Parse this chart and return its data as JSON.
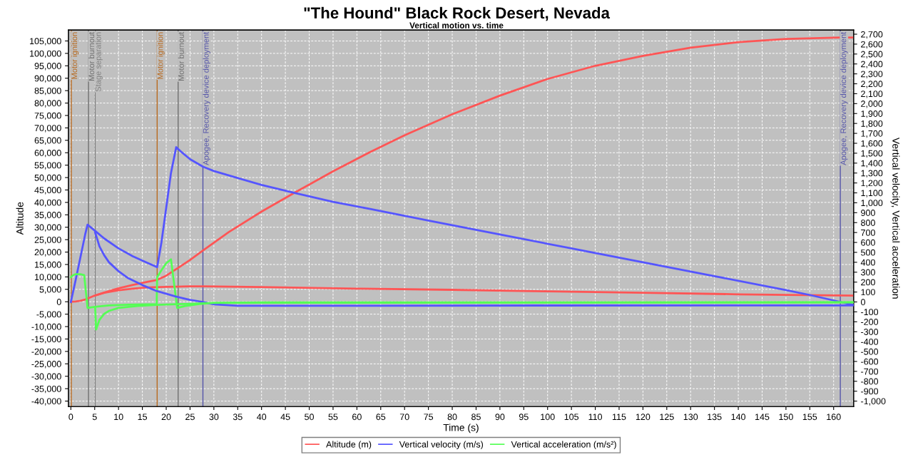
{
  "chart_data": {
    "type": "line",
    "title": "\"The Hound\" Black Rock Desert, Nevada",
    "subtitle": "Vertical motion vs. time",
    "xlabel": "Time (s)",
    "ylabel": "Altitude",
    "y2label": "Vertical velocity, Vertical acceleration",
    "series": [
      {
        "name": "Altitude (m)",
        "color": "#ff5555",
        "axis": "y",
        "x": [
          0,
          1,
          2,
          3,
          3.5,
          5,
          7,
          10,
          13,
          16,
          18.1,
          20,
          22,
          25,
          27.7,
          33.1,
          40,
          47,
          55,
          63,
          70,
          80,
          90,
          100,
          110,
          120,
          130,
          140,
          150,
          161.4,
          164
        ],
        "values": [
          0,
          100,
          400,
          900,
          1300,
          2500,
          3700,
          5400,
          6800,
          8000,
          8800,
          10500,
          13000,
          16800,
          20600,
          28000,
          36300,
          44000,
          52500,
          60500,
          67000,
          75500,
          83000,
          89700,
          95000,
          99000,
          102300,
          104500,
          105800,
          106400,
          106400
        ]
      },
      {
        "name": "Vertical velocity (m/s)",
        "color": "#5555ff",
        "axis": "y2",
        "x": [
          0,
          1,
          2,
          3,
          3.5,
          5,
          7,
          10,
          13,
          16,
          18.1,
          19,
          20,
          21,
          22.1,
          23,
          25,
          27.7,
          30,
          35.1,
          40,
          47.1,
          55,
          63,
          75,
          90,
          105,
          120,
          135,
          150,
          155,
          161.4,
          164
        ],
        "values": [
          0,
          220,
          450,
          680,
          779,
          720,
          640,
          540,
          460,
          395,
          350,
          600,
          950,
          1300,
          1561,
          1520,
          1440,
          1364,
          1320,
          1248,
          1180,
          1097,
          1010,
          935,
          820,
          680,
          540,
          400,
          260,
          120,
          70,
          0,
          -28
        ]
      },
      {
        "name": "Vertical acceleration (m/s²)",
        "color": "#55ff55",
        "axis": "y2",
        "x": [
          0,
          0.5,
          1,
          2,
          2.8,
          3.5,
          5,
          8,
          12,
          18,
          18.1,
          19,
          20,
          21,
          22.3,
          24,
          27,
          30,
          40,
          164
        ],
        "values": [
          250,
          270,
          280,
          280,
          270,
          -60,
          -50,
          -35,
          -28,
          -22,
          250,
          320,
          390,
          430,
          -60,
          -40,
          -20,
          -10,
          -8,
          -5
        ]
      },
      {
        "color": "#ff5555",
        "axis": "y",
        "x": [
          5.1,
          7,
          10,
          13,
          16,
          20,
          25,
          28,
          40,
          60,
          80,
          100,
          120,
          140,
          164
        ],
        "values": [
          2500,
          3600,
          4600,
          5300,
          5800,
          6000,
          6200,
          6200,
          5900,
          5300,
          4800,
          4200,
          3600,
          3000,
          2500
        ]
      },
      {
        "color": "#5555ff",
        "axis": "y2",
        "x": [
          5.1,
          6,
          7,
          8,
          10,
          12,
          15,
          18,
          22,
          25,
          27.7,
          30,
          35,
          60,
          100,
          164
        ],
        "values": [
          700,
          560,
          470,
          400,
          310,
          240,
          170,
          110,
          55,
          20,
          0,
          -25,
          -38,
          -38,
          -36,
          -35
        ]
      },
      {
        "color": "#55ff55",
        "axis": "y2",
        "x": [
          5.1,
          5.3,
          6,
          7,
          8,
          10,
          14,
          18,
          24,
          30,
          40,
          164
        ],
        "values": [
          -60,
          -278,
          -180,
          -120,
          -90,
          -60,
          -40,
          -30,
          -20,
          -10,
          -5,
          -3
        ]
      }
    ],
    "xlim": [
      -0.5,
      164.2
    ],
    "xticks": [
      0,
      5,
      10,
      15,
      20,
      25,
      30,
      35,
      40,
      45,
      50,
      55,
      60,
      65,
      70,
      75,
      80,
      85,
      90,
      95,
      100,
      105,
      110,
      115,
      120,
      125,
      130,
      135,
      140,
      145,
      150,
      155,
      160
    ],
    "ylim": [
      -42200,
      109400
    ],
    "yticks": [
      {
        "value": -40000,
        "label": "-40,000"
      },
      {
        "value": -35000,
        "label": "-35,000"
      },
      {
        "value": -30000,
        "label": "-30,000"
      },
      {
        "value": -25000,
        "label": "-25,000"
      },
      {
        "value": -20000,
        "label": "-20,000"
      },
      {
        "value": -15000,
        "label": "-15,000"
      },
      {
        "value": -10000,
        "label": "-10,000"
      },
      {
        "value": -5000,
        "label": "-5,000"
      },
      0,
      {
        "value": 5000,
        "label": "5,000"
      },
      {
        "value": 10000,
        "label": "10,000"
      },
      {
        "value": 15000,
        "label": "15,000"
      },
      {
        "value": 20000,
        "label": "20,000"
      },
      {
        "value": 25000,
        "label": "25,000"
      },
      {
        "value": 30000,
        "label": "30,000"
      },
      {
        "value": 35000,
        "label": "35,000"
      },
      {
        "value": 40000,
        "label": "40,000"
      },
      {
        "value": 45000,
        "label": "45,000"
      },
      {
        "value": 50000,
        "label": "50,000"
      },
      {
        "value": 55000,
        "label": "55,000"
      },
      {
        "value": 60000,
        "label": "60,000"
      },
      {
        "value": 65000,
        "label": "65,000"
      },
      {
        "value": 70000,
        "label": "70,000"
      },
      {
        "value": 75000,
        "label": "75,000"
      },
      {
        "value": 80000,
        "label": "80,000"
      },
      {
        "value": 85000,
        "label": "85,000"
      },
      {
        "value": 90000,
        "label": "90,000"
      },
      {
        "value": 95000,
        "label": "95,000"
      },
      {
        "value": 100000,
        "label": "100,000"
      },
      {
        "value": 105000,
        "label": "105,000"
      }
    ],
    "y2lim": [
      -1055,
      2742
    ],
    "y2ticks": [
      {
        "value": -1000,
        "label": "-1,000"
      },
      -900,
      -800,
      -700,
      -600,
      -500,
      -400,
      -300,
      -200,
      -100,
      0,
      100,
      200,
      300,
      400,
      500,
      600,
      700,
      800,
      900,
      {
        "value": 1000,
        "label": "1,000"
      },
      {
        "value": 1100,
        "label": "1,100"
      },
      {
        "value": 1200,
        "label": "1,200"
      },
      {
        "value": 1300,
        "label": "1,300"
      },
      {
        "value": 1400,
        "label": "1,400"
      },
      {
        "value": 1500,
        "label": "1,500"
      },
      {
        "value": 1600,
        "label": "1,600"
      },
      {
        "value": 1700,
        "label": "1,700"
      },
      {
        "value": 1800,
        "label": "1,800"
      },
      {
        "value": 1900,
        "label": "1,900"
      },
      {
        "value": 2000,
        "label": "2,000"
      },
      {
        "value": 2100,
        "label": "2,100"
      },
      {
        "value": 2200,
        "label": "2,200"
      },
      {
        "value": 2300,
        "label": "2,300"
      },
      {
        "value": 2400,
        "label": "2,400"
      },
      {
        "value": 2500,
        "label": "2,500"
      },
      {
        "value": 2600,
        "label": "2,600"
      },
      {
        "value": 2700,
        "label": "2,700"
      }
    ],
    "ref_lines": [
      {
        "axis": "x",
        "value": 0.1,
        "label": "Motor ignition",
        "color": "#b86a20"
      },
      {
        "axis": "x",
        "value": 3.7,
        "label": "Motor burnout",
        "color": "#707070"
      },
      {
        "axis": "x",
        "value": 5.1,
        "label": "Stage separation",
        "color": "#808080"
      },
      {
        "axis": "x",
        "value": 18.1,
        "label": "Motor ignition",
        "color": "#b86a20"
      },
      {
        "axis": "x",
        "value": 22.5,
        "label": "Motor burnout",
        "color": "#707070"
      },
      {
        "axis": "x",
        "value": 27.7,
        "label": "Apogee, Recovery device deployment",
        "color": "#5555aa"
      },
      {
        "axis": "x",
        "value": 161.4,
        "label": "Apogee, Recovery device deployment",
        "color": "#5555aa"
      }
    ],
    "grid": true,
    "legend": "bottom"
  }
}
